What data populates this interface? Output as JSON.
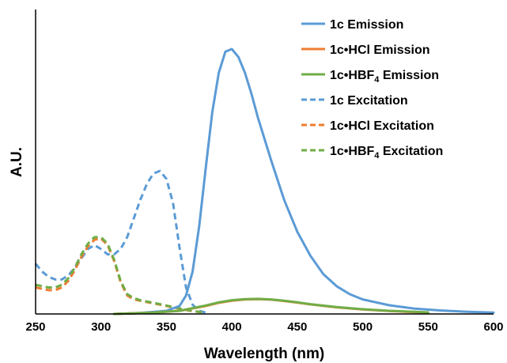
{
  "chart_data": {
    "type": "line",
    "title": "",
    "xlabel": "Wavelength (nm)",
    "ylabel": "A.U.",
    "xlim": [
      250,
      600
    ],
    "ylim": [
      0,
      1
    ],
    "xticks": [
      250,
      300,
      350,
      400,
      450,
      500,
      550,
      600
    ],
    "grid": false,
    "legend_position": "top-right",
    "series": [
      {
        "name": "1c Emission",
        "color": "#5b9bd5",
        "style": "solid",
        "x": [
          310,
          330,
          350,
          360,
          365,
          370,
          375,
          380,
          385,
          390,
          395,
          400,
          405,
          410,
          415,
          420,
          430,
          440,
          450,
          460,
          470,
          480,
          490,
          500,
          520,
          540,
          560,
          580,
          600
        ],
        "y": [
          0.0,
          0.004,
          0.012,
          0.03,
          0.07,
          0.16,
          0.33,
          0.55,
          0.76,
          0.91,
          0.99,
          1.0,
          0.97,
          0.91,
          0.83,
          0.74,
          0.58,
          0.43,
          0.31,
          0.22,
          0.15,
          0.105,
          0.075,
          0.055,
          0.033,
          0.02,
          0.013,
          0.008,
          0.005
        ]
      },
      {
        "name": "1c•HCl Emission",
        "color": "#ed7d31",
        "style": "solid",
        "x": [
          310,
          340,
          360,
          380,
          390,
          400,
          410,
          420,
          430,
          440,
          450,
          460,
          480,
          500,
          520,
          540,
          550
        ],
        "y": [
          0.0,
          0.005,
          0.012,
          0.03,
          0.042,
          0.05,
          0.055,
          0.056,
          0.054,
          0.049,
          0.043,
          0.036,
          0.025,
          0.017,
          0.011,
          0.007,
          0.005
        ]
      },
      {
        "name": "1c•HBF4 Emission",
        "legend_base": "1c•HBF",
        "legend_sub": "4",
        "legend_tail": " Emission",
        "color": "#70ad47",
        "style": "solid",
        "x": [
          310,
          340,
          360,
          380,
          390,
          400,
          410,
          420,
          430,
          440,
          450,
          460,
          480,
          500,
          520,
          540,
          550
        ],
        "y": [
          0.0,
          0.005,
          0.012,
          0.032,
          0.044,
          0.052,
          0.056,
          0.057,
          0.055,
          0.05,
          0.044,
          0.037,
          0.026,
          0.018,
          0.012,
          0.008,
          0.006
        ]
      },
      {
        "name": "1c Excitation",
        "color": "#5b9bd5",
        "style": "dashed",
        "x": [
          250,
          255,
          260,
          265,
          270,
          275,
          280,
          285,
          290,
          295,
          300,
          305,
          310,
          315,
          320,
          325,
          330,
          335,
          340,
          345,
          350,
          355,
          360,
          365,
          370,
          375,
          380
        ],
        "y": [
          0.19,
          0.16,
          0.14,
          0.13,
          0.13,
          0.145,
          0.175,
          0.21,
          0.245,
          0.26,
          0.245,
          0.225,
          0.225,
          0.245,
          0.29,
          0.36,
          0.43,
          0.49,
          0.53,
          0.54,
          0.51,
          0.42,
          0.25,
          0.1,
          0.035,
          0.012,
          0.005
        ]
      },
      {
        "name": "1c•HCl Excitation",
        "color": "#ed7d31",
        "style": "dashed",
        "x": [
          250,
          255,
          260,
          265,
          270,
          275,
          280,
          285,
          290,
          295,
          300,
          305,
          310,
          315,
          320,
          325,
          330,
          340,
          350,
          360,
          370,
          380
        ],
        "y": [
          0.1,
          0.095,
          0.09,
          0.09,
          0.1,
          0.125,
          0.165,
          0.215,
          0.255,
          0.28,
          0.285,
          0.26,
          0.2,
          0.12,
          0.07,
          0.055,
          0.05,
          0.04,
          0.03,
          0.02,
          0.01,
          0.005
        ]
      },
      {
        "name": "1c•HBF4 Excitation",
        "legend_base": "1c•HBF",
        "legend_sub": "4",
        "legend_tail": " Excitation",
        "color": "#70ad47",
        "style": "dashed",
        "x": [
          250,
          255,
          260,
          265,
          270,
          275,
          280,
          285,
          290,
          295,
          300,
          305,
          310,
          315,
          320,
          325,
          330,
          340,
          350,
          360,
          370,
          380
        ],
        "y": [
          0.11,
          0.105,
          0.1,
          0.1,
          0.11,
          0.135,
          0.175,
          0.225,
          0.265,
          0.29,
          0.29,
          0.265,
          0.205,
          0.125,
          0.075,
          0.06,
          0.052,
          0.042,
          0.032,
          0.021,
          0.011,
          0.005
        ]
      }
    ]
  }
}
